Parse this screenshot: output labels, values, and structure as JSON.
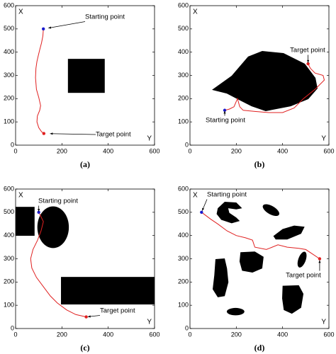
{
  "chart_data": [
    {
      "type": "line",
      "caption": "(a)",
      "ylabel": "X",
      "xlabel": "Y",
      "xlim": [
        0,
        600
      ],
      "ylim": [
        0,
        600
      ],
      "xticks": [
        0,
        200,
        400,
        600
      ],
      "yticks": [
        0,
        100,
        200,
        300,
        400,
        500,
        600
      ],
      "annotations": [
        "Starting point",
        "Target point"
      ],
      "series": [
        {
          "color": "#e02020",
          "x": [
            120,
            118,
            112,
            104,
            98,
            92,
            88,
            86,
            90,
            100,
            108,
            104,
            94,
            92,
            100,
            112,
            122
          ],
          "y": [
            500,
            470,
            440,
            410,
            385,
            360,
            330,
            290,
            240,
            205,
            170,
            150,
            125,
            100,
            75,
            58,
            50
          ]
        }
      ],
      "start_color": "#1a1acc",
      "target_color": "#e02020"
    },
    {
      "type": "line",
      "caption": "(b)",
      "ylabel": "X",
      "xlabel": "Y",
      "xlim": [
        0,
        600
      ],
      "ylim": [
        0,
        600
      ],
      "xticks": [
        0,
        200,
        400,
        600
      ],
      "yticks": [
        0,
        100,
        200,
        300,
        400,
        500,
        600
      ],
      "annotations": [
        "Starting point",
        "Target point"
      ],
      "series": [
        {
          "color": "#e02020",
          "x": [
            150,
            170,
            190,
            205,
            215,
            230,
            280,
            340,
            400,
            450,
            490,
            540,
            580,
            575,
            540,
            520,
            510
          ],
          "y": [
            150,
            155,
            165,
            200,
            165,
            150,
            145,
            140,
            140,
            160,
            200,
            240,
            280,
            300,
            310,
            330,
            350
          ]
        }
      ],
      "start_color": "#1a1acc",
      "target_color": "#e02020"
    },
    {
      "type": "line",
      "caption": "(c)",
      "ylabel": "X",
      "xlabel": "Y",
      "xlim": [
        0,
        600
      ],
      "ylim": [
        0,
        600
      ],
      "xticks": [
        0,
        200,
        400,
        600
      ],
      "yticks": [
        0,
        100,
        200,
        300,
        400,
        500,
        600
      ],
      "annotations": [
        "Starting point",
        "Target point"
      ],
      "series": [
        {
          "color": "#e02020",
          "x": [
            100,
            120,
            110,
            95,
            75,
            65,
            70,
            90,
            120,
            150,
            180,
            220,
            260,
            305
          ],
          "y": [
            500,
            460,
            420,
            380,
            340,
            300,
            260,
            220,
            180,
            140,
            110,
            80,
            60,
            50
          ]
        }
      ],
      "start_color": "#1a1acc",
      "target_color": "#e02020"
    },
    {
      "type": "line",
      "caption": "(d)",
      "ylabel": "X",
      "xlabel": "Y",
      "xlim": [
        0,
        600
      ],
      "ylim": [
        0,
        600
      ],
      "xticks": [
        0,
        200,
        400,
        600
      ],
      "yticks": [
        0,
        100,
        200,
        300,
        400,
        500,
        600
      ],
      "annotations": [
        "Starting point",
        "Target point"
      ],
      "series": [
        {
          "color": "#e02020",
          "x": [
            50,
            90,
            120,
            160,
            200,
            240,
            270,
            280,
            330,
            380,
            420,
            470,
            500,
            530,
            560
          ],
          "y": [
            500,
            470,
            450,
            420,
            400,
            390,
            380,
            350,
            340,
            360,
            350,
            345,
            340,
            320,
            300
          ]
        }
      ],
      "start_color": "#1a1acc",
      "target_color": "#e02020"
    }
  ]
}
